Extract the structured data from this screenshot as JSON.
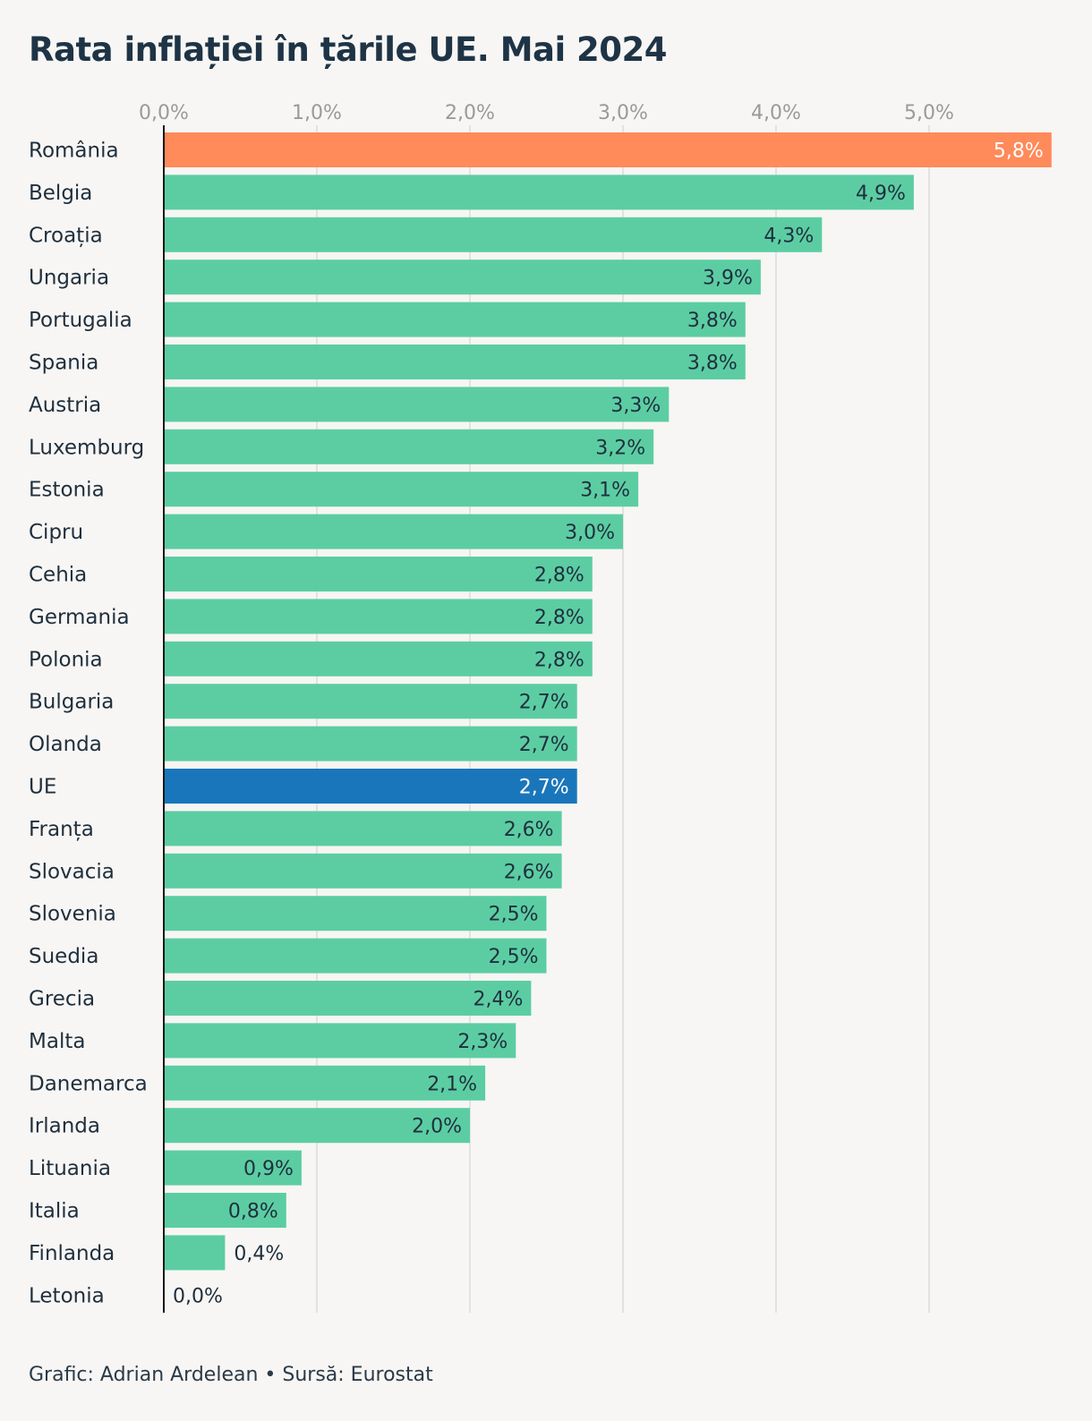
{
  "footer": "Grafic: Adrian Ardelean • Sursă: Eurostat",
  "colors": {
    "default_bar": "#5ccda3",
    "highlight_romania": "#ff8a5a",
    "highlight_eu": "#1a76bb",
    "grid": "#dcdcdc",
    "tick_text": "#9a9a9a",
    "label_text": "#1f2f3d",
    "label_text_on_highlight": "#ffffff"
  },
  "chart_data": {
    "type": "bar",
    "orientation": "horizontal",
    "title": "Rata inflației în țările UE. Mai 2024",
    "xlabel": "",
    "ylabel": "",
    "xlim": [
      0,
      5.8
    ],
    "grid": true,
    "x_ticks": [
      {
        "value": 0,
        "label": "0,0%"
      },
      {
        "value": 1,
        "label": "1,0%"
      },
      {
        "value": 2,
        "label": "2,0%"
      },
      {
        "value": 3,
        "label": "3,0%"
      },
      {
        "value": 4,
        "label": "4,0%"
      },
      {
        "value": 5,
        "label": "5,0%"
      }
    ],
    "bars": [
      {
        "category": "România",
        "value": 5.8,
        "label": "5,8%",
        "highlight": "romania"
      },
      {
        "category": "Belgia",
        "value": 4.9,
        "label": "4,9%"
      },
      {
        "category": "Croația",
        "value": 4.3,
        "label": "4,3%"
      },
      {
        "category": "Ungaria",
        "value": 3.9,
        "label": "3,9%"
      },
      {
        "category": "Portugalia",
        "value": 3.8,
        "label": "3,8%"
      },
      {
        "category": "Spania",
        "value": 3.8,
        "label": "3,8%"
      },
      {
        "category": "Austria",
        "value": 3.3,
        "label": "3,3%"
      },
      {
        "category": "Luxemburg",
        "value": 3.2,
        "label": "3,2%"
      },
      {
        "category": "Estonia",
        "value": 3.1,
        "label": "3,1%"
      },
      {
        "category": "Cipru",
        "value": 3.0,
        "label": "3,0%"
      },
      {
        "category": "Cehia",
        "value": 2.8,
        "label": "2,8%"
      },
      {
        "category": "Germania",
        "value": 2.8,
        "label": "2,8%"
      },
      {
        "category": "Polonia",
        "value": 2.8,
        "label": "2,8%"
      },
      {
        "category": "Bulgaria",
        "value": 2.7,
        "label": "2,7%"
      },
      {
        "category": "Olanda",
        "value": 2.7,
        "label": "2,7%"
      },
      {
        "category": "UE",
        "value": 2.7,
        "label": "2,7%",
        "highlight": "eu"
      },
      {
        "category": "Franța",
        "value": 2.6,
        "label": "2,6%"
      },
      {
        "category": "Slovacia",
        "value": 2.6,
        "label": "2,6%"
      },
      {
        "category": "Slovenia",
        "value": 2.5,
        "label": "2,5%"
      },
      {
        "category": "Suedia",
        "value": 2.5,
        "label": "2,5%"
      },
      {
        "category": "Grecia",
        "value": 2.4,
        "label": "2,4%"
      },
      {
        "category": "Malta",
        "value": 2.3,
        "label": "2,3%"
      },
      {
        "category": "Danemarca",
        "value": 2.1,
        "label": "2,1%"
      },
      {
        "category": "Irlanda",
        "value": 2.0,
        "label": "2,0%"
      },
      {
        "category": "Lituania",
        "value": 0.9,
        "label": "0,9%"
      },
      {
        "category": "Italia",
        "value": 0.8,
        "label": "0,8%"
      },
      {
        "category": "Finlanda",
        "value": 0.4,
        "label": "0,4%"
      },
      {
        "category": "Letonia",
        "value": 0.0,
        "label": "0,0%"
      }
    ]
  }
}
